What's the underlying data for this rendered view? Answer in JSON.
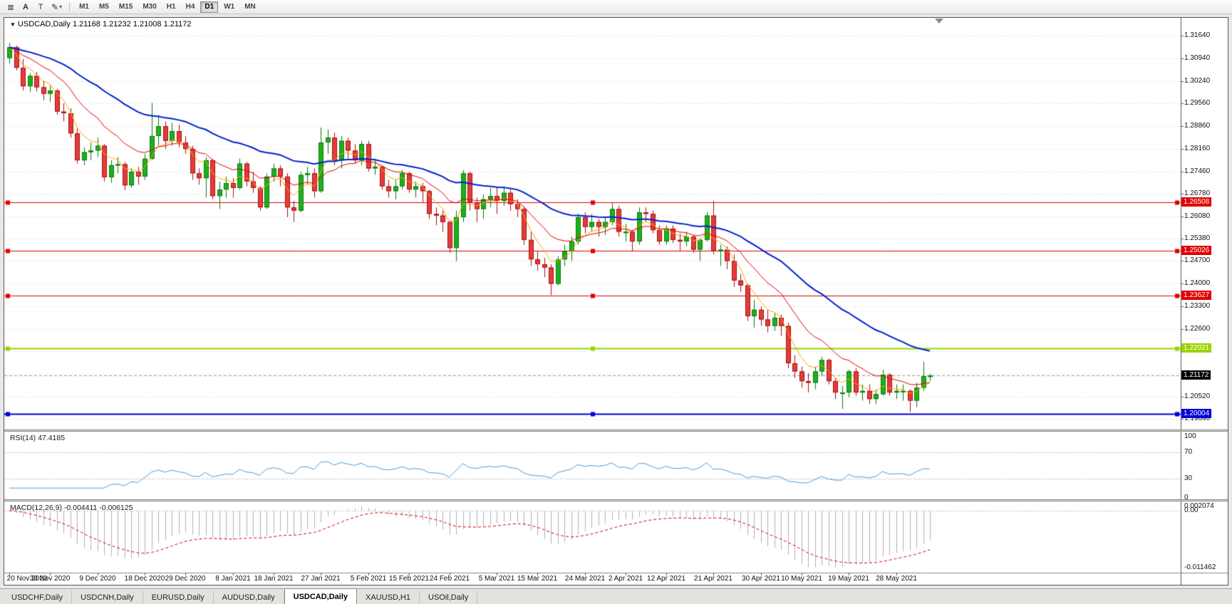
{
  "toolbar": {
    "icons": {
      "menu": "≣",
      "draw": "✎",
      "dropdown": "▾"
    },
    "a_label": "A",
    "t_label": "T",
    "timeframes": [
      "M1",
      "M5",
      "M15",
      "M30",
      "H1",
      "H4",
      "D1",
      "W1",
      "MN"
    ],
    "active_timeframe": "D1"
  },
  "header": {
    "dropdown_icon": "▼",
    "symbol": "USDCAD,Daily",
    "ohlc": "1.21168 1.21232 1.21008 1.21172"
  },
  "price_axis": {
    "labels": [
      "1.31640",
      "1.30940",
      "1.30240",
      "1.29560",
      "1.28860",
      "1.28160",
      "1.27460",
      "1.26780",
      "1.26080",
      "1.25380",
      "1.24700",
      "1.24000",
      "1.23300",
      "1.22600",
      "1.21920",
      "1.21220",
      "1.20520",
      "1.19840"
    ]
  },
  "levels": [
    {
      "value": 1.26508,
      "label": "1.26508",
      "color": "#df0000",
      "width": 1
    },
    {
      "value": 1.25026,
      "label": "1.25026",
      "color": "#df0000",
      "width": 1
    },
    {
      "value": 1.23627,
      "label": "1.23627",
      "color": "#df0000",
      "width": 1
    },
    {
      "value": 1.22021,
      "label": "1.22021",
      "color": "#9bd400",
      "width": 2
    },
    {
      "value": 1.20004,
      "label": "1.20004",
      "color": "#0000d8",
      "width": 2
    }
  ],
  "current_price": {
    "value": 1.21172,
    "label": "1.21172",
    "tag_color": "#000000"
  },
  "rsi": {
    "label": "RSI(14) 47.4185",
    "axis_labels": [
      {
        "value": 100,
        "text": "100"
      },
      {
        "value": 70,
        "text": "70"
      },
      {
        "value": 30,
        "text": "30"
      },
      {
        "value": 0,
        "text": "0"
      }
    ],
    "level_lines": [
      70,
      30
    ],
    "line_color": "#4f9bd5"
  },
  "macd": {
    "label": "MACD(12,26,9) -0.004411 -0.006125",
    "axis_max": "0.002074",
    "axis_zero": "0.00",
    "axis_min": "-0.011462",
    "bar_color": "#b2b2b2",
    "signal_color": "#e00000"
  },
  "time_axis": {
    "labels": [
      "20 Nov 2020",
      "30 Nov 2020",
      "9 Dec 2020",
      "18 Dec 2020",
      "29 Dec 2020",
      "8 Jan 2021",
      "18 Jan 2021",
      "27 Jan 2021",
      "5 Feb 2021",
      "15 Feb 2021",
      "24 Feb 2021",
      "5 Mar 2021",
      "15 Mar 2021",
      "24 Mar 2021",
      "2 Apr 2021",
      "12 Apr 2021",
      "21 Apr 2021",
      "30 Apr 2021",
      "10 May 2021",
      "19 May 2021",
      "28 May 2021"
    ],
    "indices": [
      0,
      6,
      13,
      20,
      26,
      33,
      39,
      46,
      53,
      59,
      65,
      72,
      78,
      85,
      91,
      97,
      104,
      111,
      117,
      124,
      131
    ]
  },
  "tabs": {
    "items": [
      "USDCHF,Daily",
      "USDCNH,Daily",
      "EURUSD,Daily",
      "AUDUSD,Daily",
      "USDCAD,Daily",
      "XAUUSD,H1",
      "USOil,Daily"
    ],
    "active": "USDCAD,Daily"
  },
  "chart_data": {
    "type": "candlestick",
    "symbol": "USDCAD",
    "timeframe": "Daily",
    "price_max": 1.32188,
    "price_min": 1.19512,
    "up_color": "#1cb11c",
    "up_border": "#0c7a0c",
    "down_color": "#e53b3b",
    "down_border": "#a51212",
    "moving_averages": [
      {
        "name": "fast-ma",
        "period": 5,
        "method": "ema",
        "color": "#ffa200",
        "width": 1
      },
      {
        "name": "medium-ma",
        "period": 13,
        "method": "ema",
        "color": "#e60000",
        "width": 1
      },
      {
        "name": "slow-ma",
        "period": 34,
        "method": "ema",
        "color": "#0022cc",
        "width": 2
      }
    ],
    "indicators": [
      {
        "type": "rsi",
        "period": 14,
        "last_value": 47.4185
      },
      {
        "type": "macd",
        "fast": 12,
        "slow": 26,
        "signal": 9,
        "last_macd": -0.004411,
        "last_signal": -0.006125
      }
    ],
    "candles": [
      [
        1.3095,
        1.3141,
        1.3078,
        1.3128
      ],
      [
        1.3128,
        1.3133,
        1.3057,
        1.3065
      ],
      [
        1.3065,
        1.3092,
        1.2995,
        1.3008
      ],
      [
        1.3008,
        1.3048,
        1.299,
        1.304
      ],
      [
        1.304,
        1.3052,
        1.2992,
        1.3005
      ],
      [
        1.3005,
        1.3025,
        1.2965,
        1.2985
      ],
      [
        1.2985,
        1.301,
        1.296,
        1.2995
      ],
      [
        1.2995,
        1.3,
        1.292,
        1.293
      ],
      [
        1.293,
        1.2955,
        1.29,
        1.2925
      ],
      [
        1.2925,
        1.294,
        1.285,
        1.2863
      ],
      [
        1.2863,
        1.288,
        1.277,
        1.278
      ],
      [
        1.278,
        1.282,
        1.2765,
        1.2805
      ],
      [
        1.2805,
        1.2835,
        1.278,
        1.281
      ],
      [
        1.281,
        1.285,
        1.279,
        1.2825
      ],
      [
        1.2825,
        1.283,
        1.2715,
        1.2728
      ],
      [
        1.2728,
        1.278,
        1.271,
        1.2765
      ],
      [
        1.2765,
        1.279,
        1.274,
        1.2768
      ],
      [
        1.2768,
        1.2775,
        1.2688,
        1.2703
      ],
      [
        1.2703,
        1.2755,
        1.2695,
        1.2745
      ],
      [
        1.2745,
        1.276,
        1.2705,
        1.273
      ],
      [
        1.273,
        1.28,
        1.272,
        1.2785
      ],
      [
        1.2785,
        1.2957,
        1.278,
        1.2855
      ],
      [
        1.2855,
        1.292,
        1.2825,
        1.2885
      ],
      [
        1.2885,
        1.29,
        1.2815,
        1.284
      ],
      [
        1.284,
        1.2895,
        1.2825,
        1.287
      ],
      [
        1.287,
        1.289,
        1.282,
        1.2835
      ],
      [
        1.2835,
        1.2855,
        1.28,
        1.2815
      ],
      [
        1.2815,
        1.2825,
        1.272,
        1.274
      ],
      [
        1.274,
        1.2755,
        1.2705,
        1.2725
      ],
      [
        1.2725,
        1.279,
        1.2665,
        1.278
      ],
      [
        1.278,
        1.2785,
        1.266,
        1.267
      ],
      [
        1.267,
        1.2715,
        1.263,
        1.269
      ],
      [
        1.269,
        1.273,
        1.2665,
        1.271
      ],
      [
        1.271,
        1.2725,
        1.2665,
        1.2695
      ],
      [
        1.2695,
        1.2785,
        1.269,
        1.277
      ],
      [
        1.277,
        1.2775,
        1.27,
        1.2715
      ],
      [
        1.2715,
        1.2745,
        1.268,
        1.2695
      ],
      [
        1.2695,
        1.27,
        1.2625,
        1.2635
      ],
      [
        1.2635,
        1.274,
        1.263,
        1.273
      ],
      [
        1.273,
        1.277,
        1.2715,
        1.2755
      ],
      [
        1.2755,
        1.2765,
        1.27,
        1.273
      ],
      [
        1.273,
        1.274,
        1.2605,
        1.2635
      ],
      [
        1.2635,
        1.2655,
        1.259,
        1.2625
      ],
      [
        1.2625,
        1.2745,
        1.262,
        1.2735
      ],
      [
        1.2735,
        1.276,
        1.2705,
        1.274
      ],
      [
        1.274,
        1.2755,
        1.2665,
        1.2685
      ],
      [
        1.2685,
        1.2881,
        1.268,
        1.2835
      ],
      [
        1.2835,
        1.2875,
        1.28,
        1.285
      ],
      [
        1.285,
        1.2865,
        1.2765,
        1.278
      ],
      [
        1.278,
        1.2855,
        1.2755,
        1.284
      ],
      [
        1.284,
        1.285,
        1.2785,
        1.281
      ],
      [
        1.281,
        1.283,
        1.277,
        1.278
      ],
      [
        1.278,
        1.284,
        1.2765,
        1.283
      ],
      [
        1.283,
        1.284,
        1.2745,
        1.2755
      ],
      [
        1.2755,
        1.2785,
        1.2735,
        1.276
      ],
      [
        1.276,
        1.2765,
        1.269,
        1.27
      ],
      [
        1.27,
        1.272,
        1.2665,
        1.2685
      ],
      [
        1.2685,
        1.272,
        1.266,
        1.27
      ],
      [
        1.27,
        1.275,
        1.269,
        1.274
      ],
      [
        1.274,
        1.2745,
        1.268,
        1.269
      ],
      [
        1.269,
        1.2715,
        1.2665,
        1.27
      ],
      [
        1.27,
        1.271,
        1.265,
        1.2685
      ],
      [
        1.2685,
        1.269,
        1.26,
        1.2615
      ],
      [
        1.2615,
        1.2635,
        1.258,
        1.261
      ],
      [
        1.261,
        1.2625,
        1.256,
        1.259
      ],
      [
        1.259,
        1.2595,
        1.2495,
        1.251
      ],
      [
        1.251,
        1.2625,
        1.247,
        1.2605
      ],
      [
        1.2605,
        1.275,
        1.259,
        1.274
      ],
      [
        1.274,
        1.2745,
        1.2625,
        1.265
      ],
      [
        1.265,
        1.2665,
        1.259,
        1.263
      ],
      [
        1.263,
        1.2675,
        1.26,
        1.266
      ],
      [
        1.266,
        1.2695,
        1.2635,
        1.267
      ],
      [
        1.267,
        1.27,
        1.2615,
        1.2655
      ],
      [
        1.2655,
        1.27,
        1.264,
        1.268
      ],
      [
        1.268,
        1.269,
        1.2625,
        1.2645
      ],
      [
        1.2645,
        1.266,
        1.2605,
        1.263
      ],
      [
        1.263,
        1.2635,
        1.252,
        1.2535
      ],
      [
        1.2535,
        1.256,
        1.2455,
        1.2475
      ],
      [
        1.2475,
        1.25,
        1.244,
        1.246
      ],
      [
        1.246,
        1.248,
        1.242,
        1.245
      ],
      [
        1.245,
        1.246,
        1.2365,
        1.24
      ],
      [
        1.24,
        1.2485,
        1.2395,
        1.2475
      ],
      [
        1.2475,
        1.252,
        1.2455,
        1.25
      ],
      [
        1.25,
        1.2545,
        1.247,
        1.253
      ],
      [
        1.253,
        1.2615,
        1.252,
        1.2605
      ],
      [
        1.2605,
        1.262,
        1.2555,
        1.2575
      ],
      [
        1.2575,
        1.2615,
        1.256,
        1.259
      ],
      [
        1.259,
        1.26,
        1.2545,
        1.2575
      ],
      [
        1.2575,
        1.2605,
        1.255,
        1.259
      ],
      [
        1.259,
        1.265,
        1.258,
        1.263
      ],
      [
        1.263,
        1.264,
        1.2545,
        1.256
      ],
      [
        1.256,
        1.2585,
        1.253,
        1.256
      ],
      [
        1.256,
        1.2565,
        1.25,
        1.253
      ],
      [
        1.253,
        1.2635,
        1.252,
        1.262
      ],
      [
        1.262,
        1.2635,
        1.259,
        1.2615
      ],
      [
        1.2615,
        1.2625,
        1.2555,
        1.2565
      ],
      [
        1.2565,
        1.258,
        1.252,
        1.253
      ],
      [
        1.253,
        1.258,
        1.252,
        1.257
      ],
      [
        1.257,
        1.258,
        1.2525,
        1.2535
      ],
      [
        1.2535,
        1.2555,
        1.25,
        1.253
      ],
      [
        1.253,
        1.256,
        1.2515,
        1.2545
      ],
      [
        1.2545,
        1.255,
        1.2495,
        1.2505
      ],
      [
        1.2505,
        1.254,
        1.247,
        1.2535
      ],
      [
        1.2535,
        1.262,
        1.253,
        1.261
      ],
      [
        1.261,
        1.2655,
        1.249,
        1.25
      ],
      [
        1.25,
        1.252,
        1.2455,
        1.2505
      ],
      [
        1.2505,
        1.2515,
        1.2445,
        1.247
      ],
      [
        1.247,
        1.249,
        1.239,
        1.241
      ],
      [
        1.241,
        1.243,
        1.2375,
        1.2395
      ],
      [
        1.2395,
        1.24,
        1.2285,
        1.23
      ],
      [
        1.23,
        1.235,
        1.2265,
        1.232
      ],
      [
        1.232,
        1.233,
        1.227,
        1.229
      ],
      [
        1.229,
        1.232,
        1.225,
        1.227
      ],
      [
        1.227,
        1.231,
        1.2255,
        1.2295
      ],
      [
        1.2295,
        1.2305,
        1.224,
        1.227
      ],
      [
        1.227,
        1.228,
        1.214,
        1.2155
      ],
      [
        1.2155,
        1.218,
        1.211,
        1.213
      ],
      [
        1.213,
        1.2145,
        1.208,
        1.21
      ],
      [
        1.21,
        1.2125,
        1.2065,
        1.2095
      ],
      [
        1.2095,
        1.2145,
        1.2075,
        1.213
      ],
      [
        1.213,
        1.2175,
        1.2115,
        1.2165
      ],
      [
        1.2165,
        1.217,
        1.209,
        1.21
      ],
      [
        1.21,
        1.211,
        1.2045,
        1.2065
      ],
      [
        1.2065,
        1.2085,
        1.2015,
        1.2065
      ],
      [
        1.2065,
        1.2135,
        1.205,
        1.213
      ],
      [
        1.213,
        1.214,
        1.2055,
        1.2065
      ],
      [
        1.2065,
        1.209,
        1.204,
        1.207
      ],
      [
        1.207,
        1.209,
        1.203,
        1.2045
      ],
      [
        1.2045,
        1.2075,
        1.203,
        1.206
      ],
      [
        1.206,
        1.2135,
        1.2055,
        1.212
      ],
      [
        1.212,
        1.2125,
        1.2055,
        1.2065
      ],
      [
        1.2065,
        1.209,
        1.2045,
        1.207
      ],
      [
        1.207,
        1.209,
        1.204,
        1.207
      ],
      [
        1.207,
        1.2075,
        1.2005,
        1.204
      ],
      [
        1.204,
        1.2095,
        1.202,
        1.208
      ],
      [
        1.208,
        1.216,
        1.207,
        1.2115
      ],
      [
        1.21168,
        1.21232,
        1.21008,
        1.21172
      ]
    ]
  }
}
